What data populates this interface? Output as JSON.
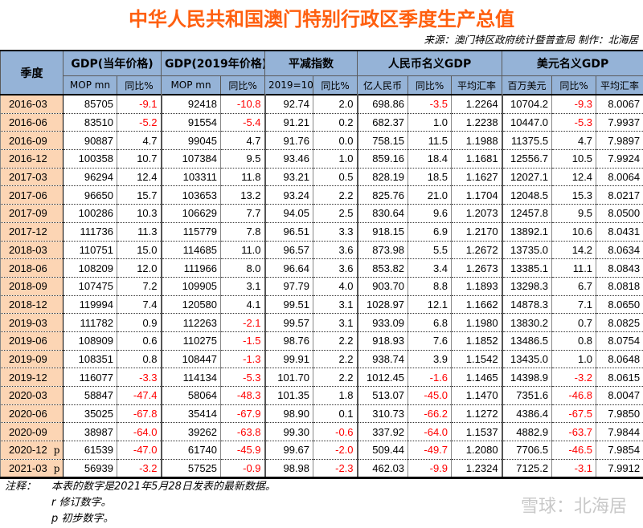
{
  "title": "中华人民共和国澳门特别行政区季度生产总值",
  "source": "来源：澳门特区政府统计暨普查局  制作：北海居",
  "colors": {
    "title": "#ff5f0f",
    "header_bg": "#95b3d7",
    "date_bg": "#fcd5b4",
    "negative": "#ff0000"
  },
  "header": {
    "quarter": "季度",
    "groups": [
      "GDP(当年价格)",
      "GDP(2019年价格)",
      "平减指数",
      "人民币名义GDP",
      "美元名义GDP"
    ],
    "sub": [
      "MOP mn",
      "同比%",
      "MOP mn",
      "同比%",
      "2019=100",
      "同比%",
      "亿人民币",
      "同比%",
      "平均汇率",
      "百万美元",
      "同比%",
      "平均汇率"
    ]
  },
  "rows": [
    {
      "q": "2016-03",
      "flag": "",
      "v": [
        "85705",
        "-9.1",
        "92418",
        "-10.8",
        "92.74",
        "2.0",
        "698.86",
        "-3.5",
        "1.2264",
        "10704.2",
        "-9.3",
        "8.0067"
      ]
    },
    {
      "q": "2016-06",
      "flag": "",
      "v": [
        "83510",
        "-5.2",
        "91554",
        "-5.4",
        "91.21",
        "0.2",
        "682.37",
        "1.0",
        "1.2238",
        "10447.0",
        "-5.3",
        "7.9937"
      ]
    },
    {
      "q": "2016-09",
      "flag": "",
      "v": [
        "90887",
        "4.7",
        "99045",
        "4.7",
        "91.76",
        "0.0",
        "758.15",
        "11.5",
        "1.1988",
        "11375.5",
        "4.7",
        "7.9897"
      ]
    },
    {
      "q": "2016-12",
      "flag": "",
      "v": [
        "100358",
        "10.7",
        "107384",
        "9.5",
        "93.46",
        "1.0",
        "859.16",
        "18.4",
        "1.1681",
        "12556.7",
        "10.5",
        "7.9924"
      ]
    },
    {
      "q": "2017-03",
      "flag": "",
      "v": [
        "96294",
        "12.4",
        "103311",
        "11.8",
        "93.21",
        "0.5",
        "828.19",
        "18.5",
        "1.1627",
        "12027.1",
        "12.4",
        "8.0064"
      ]
    },
    {
      "q": "2017-06",
      "flag": "",
      "v": [
        "96650",
        "15.7",
        "103653",
        "13.2",
        "93.24",
        "2.2",
        "825.76",
        "21.0",
        "1.1704",
        "12048.5",
        "15.3",
        "8.0217"
      ]
    },
    {
      "q": "2017-09",
      "flag": "",
      "v": [
        "100286",
        "10.3",
        "106629",
        "7.7",
        "94.05",
        "2.5",
        "830.64",
        "9.6",
        "1.2073",
        "12457.8",
        "9.5",
        "8.0500"
      ]
    },
    {
      "q": "2017-12",
      "flag": "",
      "v": [
        "111736",
        "11.3",
        "115779",
        "7.8",
        "96.51",
        "3.3",
        "918.15",
        "6.9",
        "1.2170",
        "13892.1",
        "10.6",
        "8.0431"
      ]
    },
    {
      "q": "2018-03",
      "flag": "",
      "v": [
        "110751",
        "15.0",
        "114685",
        "11.0",
        "96.57",
        "3.6",
        "873.98",
        "5.5",
        "1.2672",
        "13735.0",
        "14.2",
        "8.0634"
      ]
    },
    {
      "q": "2018-06",
      "flag": "",
      "v": [
        "108209",
        "12.0",
        "111966",
        "8.0",
        "96.64",
        "3.6",
        "853.82",
        "3.4",
        "1.2673",
        "13385.1",
        "11.1",
        "8.0843"
      ]
    },
    {
      "q": "2018-09",
      "flag": "",
      "v": [
        "107475",
        "7.2",
        "109905",
        "3.1",
        "97.79",
        "4.0",
        "903.70",
        "8.8",
        "1.1893",
        "13298.3",
        "6.7",
        "8.0818"
      ]
    },
    {
      "q": "2018-12",
      "flag": "",
      "v": [
        "119994",
        "7.4",
        "120580",
        "4.1",
        "99.51",
        "3.1",
        "1028.97",
        "12.1",
        "1.1662",
        "14878.3",
        "7.1",
        "8.0650"
      ]
    },
    {
      "q": "2019-03",
      "flag": "",
      "v": [
        "111782",
        "0.9",
        "112263",
        "-2.1",
        "99.57",
        "3.1",
        "933.09",
        "6.8",
        "1.1980",
        "13830.2",
        "0.7",
        "8.0825"
      ]
    },
    {
      "q": "2019-06",
      "flag": "",
      "v": [
        "108909",
        "0.6",
        "110275",
        "-1.5",
        "98.76",
        "2.2",
        "918.93",
        "7.6",
        "1.1852",
        "13486.5",
        "0.8",
        "8.0754"
      ]
    },
    {
      "q": "2019-09",
      "flag": "",
      "v": [
        "108351",
        "0.8",
        "108447",
        "-1.3",
        "99.91",
        "2.2",
        "938.74",
        "3.9",
        "1.1542",
        "13435.0",
        "1.0",
        "8.0648"
      ]
    },
    {
      "q": "2019-12",
      "flag": "",
      "v": [
        "116077",
        "-3.3",
        "114134",
        "-5.3",
        "101.70",
        "2.2",
        "1012.45",
        "-1.6",
        "1.1465",
        "14398.9",
        "-3.2",
        "8.0615"
      ]
    },
    {
      "q": "2020-03",
      "flag": "",
      "v": [
        "58847",
        "-47.4",
        "58064",
        "-48.3",
        "101.35",
        "1.8",
        "513.07",
        "-45.0",
        "1.1470",
        "7351.6",
        "-46.8",
        "8.0047"
      ]
    },
    {
      "q": "2020-06",
      "flag": "",
      "v": [
        "35025",
        "-67.8",
        "35414",
        "-67.9",
        "98.90",
        "0.1",
        "310.73",
        "-66.2",
        "1.1272",
        "4386.4",
        "-67.5",
        "7.9850"
      ]
    },
    {
      "q": "2020-09",
      "flag": "",
      "v": [
        "38987",
        "-64.0",
        "39262",
        "-63.8",
        "99.30",
        "-0.6",
        "337.92",
        "-64.0",
        "1.1537",
        "4882.9",
        "-63.7",
        "7.9844"
      ]
    },
    {
      "q": "2020-12",
      "flag": "p",
      "v": [
        "61539",
        "-47.0",
        "61740",
        "-45.9",
        "99.67",
        "-2.0",
        "509.44",
        "-49.7",
        "1.2080",
        "7706.5",
        "-46.5",
        "7.9854"
      ]
    },
    {
      "q": "2021-03",
      "flag": "p",
      "v": [
        "56939",
        "-3.2",
        "57525",
        "-0.9",
        "98.98",
        "-2.3",
        "462.03",
        "-9.9",
        "1.2324",
        "7125.2",
        "-3.1",
        "7.9912"
      ]
    }
  ],
  "notes": {
    "label": "注释：",
    "lines": [
      "本表的数字是2021年5月28日发表的最新数据。",
      "r  修订数字。",
      "p  初步数字。"
    ]
  },
  "watermark": "雪球：北海居"
}
